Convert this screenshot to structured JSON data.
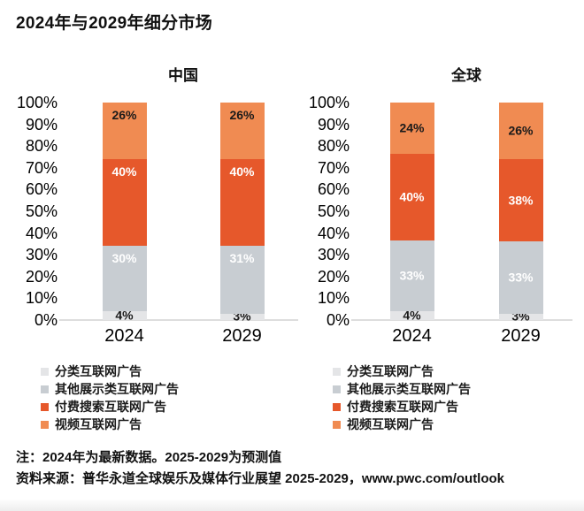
{
  "title": "2024年与2029年细分市场",
  "notes": {
    "note": "注：2024年为最新数据。2025-2029为预测值",
    "source": "资料来源：普华永道全球娱乐及媒体行业展望 2025-2029，www.pwc.com/outlook"
  },
  "colors": {
    "classified_gray_light": "#E4E5E7",
    "display_gray": "#C8CDD2",
    "paid_search_orange": "#E6582B",
    "video_orange_light": "#F08B52",
    "baseline_gray": "#DDDDDD",
    "background": "#FFFFFF"
  },
  "chart_data": [
    {
      "type": "bar",
      "stacked": true,
      "title": "中国",
      "categories": [
        "2024",
        "2029"
      ],
      "ylim": [
        0,
        100
      ],
      "yticks": [
        "100%",
        "90%",
        "80%",
        "70%",
        "60%",
        "50%",
        "40%",
        "30%",
        "20%",
        "10%",
        "0%"
      ],
      "grid": false,
      "legend_position": "bottom-left",
      "label_align": "top",
      "series": [
        {
          "name": "分类互联网广告",
          "color": "#E4E5E7",
          "label_color": "#1a1a1a",
          "values": [
            4,
            3
          ]
        },
        {
          "name": "其他展示类互联网广告",
          "color": "#C8CDD2",
          "label_color": "#ffffff",
          "values": [
            30,
            31
          ]
        },
        {
          "name": "付费搜索互联网广告",
          "color": "#E6582B",
          "label_color": "#ffffff",
          "values": [
            40,
            40
          ]
        },
        {
          "name": "视频互联网广告",
          "color": "#F08B52",
          "label_color": "#1a1a1a",
          "values": [
            26,
            26
          ]
        }
      ]
    },
    {
      "type": "bar",
      "stacked": true,
      "title": "全球",
      "categories": [
        "2024",
        "2029"
      ],
      "ylim": [
        0,
        100
      ],
      "yticks": [
        "100%",
        "90%",
        "80%",
        "70%",
        "60%",
        "50%",
        "40%",
        "30%",
        "20%",
        "10%",
        "0%"
      ],
      "grid": false,
      "legend_position": "bottom-left",
      "label_align": "center",
      "series": [
        {
          "name": "分类互联网广告",
          "color": "#E4E5E7",
          "label_color": "#1a1a1a",
          "values": [
            4,
            3
          ]
        },
        {
          "name": "其他展示类互联网广告",
          "color": "#C8CDD2",
          "label_color": "#ffffff",
          "values": [
            33,
            33
          ]
        },
        {
          "name": "付费搜索互联网广告",
          "color": "#E6582B",
          "label_color": "#ffffff",
          "values": [
            40,
            38
          ]
        },
        {
          "name": "视频互联网广告",
          "color": "#F08B52",
          "label_color": "#1a1a1a",
          "values": [
            24,
            26
          ]
        }
      ]
    }
  ]
}
